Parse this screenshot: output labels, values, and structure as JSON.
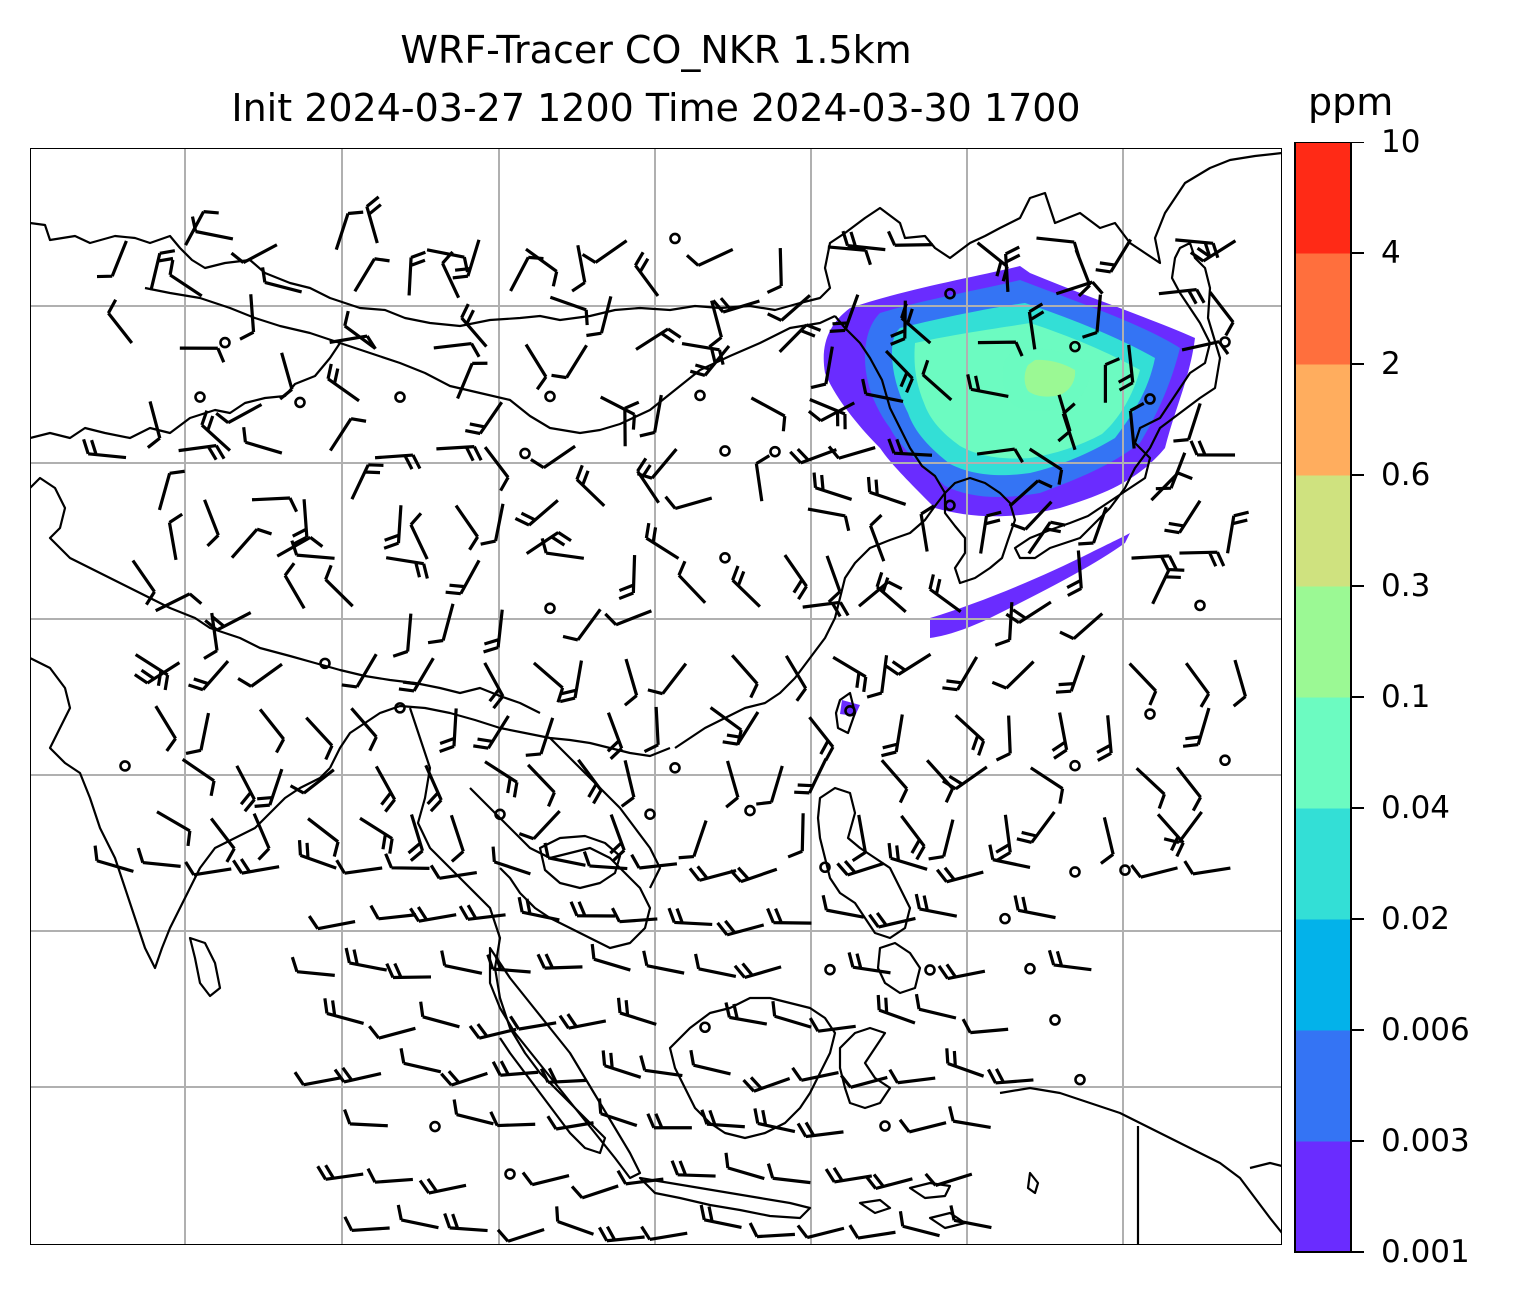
{
  "title": {
    "line1": "WRF-Tracer CO_NKR 1.5km",
    "line2": "Init 2024-03-27 1200 Time 2024-03-30 1700"
  },
  "colorbar": {
    "unit": "ppm",
    "levels": [
      "0.001",
      "0.003",
      "0.006",
      "0.02",
      "0.04",
      "0.1",
      "0.3",
      "0.6",
      "2",
      "4",
      "10"
    ],
    "colors": [
      "#6a2cff",
      "#3474f4",
      "#03b2ea",
      "#33dfd6",
      "#6cfbc1",
      "#9bf994",
      "#cfe27f",
      "#ffad5e",
      "#ff6f3d",
      "#ff2a16"
    ]
  },
  "map": {
    "grid": "on",
    "coastline_color": "#000000",
    "barb_color": "#000000",
    "gridline_color": "#b0b0b0"
  }
}
